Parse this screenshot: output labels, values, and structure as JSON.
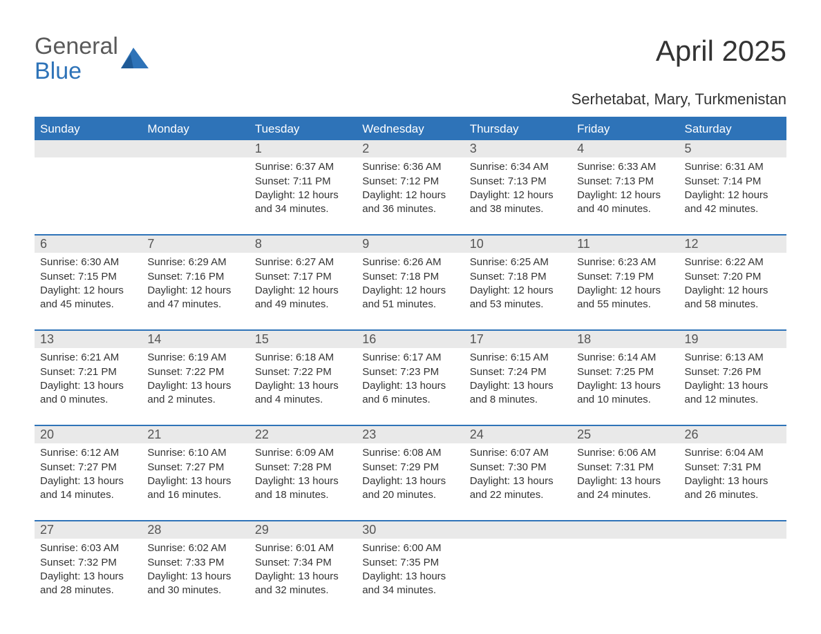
{
  "brand": {
    "top": "General",
    "bottom": "Blue",
    "top_color": "#5a5a5a",
    "bottom_color": "#2e73b8",
    "mark_color": "#2e73b8"
  },
  "title": "April 2025",
  "location": "Serhetabat, Mary, Turkmenistan",
  "colors": {
    "header_bg": "#2e73b8",
    "header_text": "#ffffff",
    "daynum_bg": "#e9e9e9",
    "week_divider": "#2e73b8",
    "body_text": "#333333",
    "page_bg": "#ffffff"
  },
  "typography": {
    "title_fontsize": 42,
    "location_fontsize": 22,
    "dayhead_fontsize": 17,
    "daynum_fontsize": 18,
    "cell_fontsize": 15
  },
  "day_headers": [
    "Sunday",
    "Monday",
    "Tuesday",
    "Wednesday",
    "Thursday",
    "Friday",
    "Saturday"
  ],
  "weeks": [
    {
      "days": [
        {
          "num": "",
          "sunrise": "",
          "sunset": "",
          "daylight": ""
        },
        {
          "num": "",
          "sunrise": "",
          "sunset": "",
          "daylight": ""
        },
        {
          "num": "1",
          "sunrise": "Sunrise: 6:37 AM",
          "sunset": "Sunset: 7:11 PM",
          "daylight": "Daylight: 12 hours and 34 minutes."
        },
        {
          "num": "2",
          "sunrise": "Sunrise: 6:36 AM",
          "sunset": "Sunset: 7:12 PM",
          "daylight": "Daylight: 12 hours and 36 minutes."
        },
        {
          "num": "3",
          "sunrise": "Sunrise: 6:34 AM",
          "sunset": "Sunset: 7:13 PM",
          "daylight": "Daylight: 12 hours and 38 minutes."
        },
        {
          "num": "4",
          "sunrise": "Sunrise: 6:33 AM",
          "sunset": "Sunset: 7:13 PM",
          "daylight": "Daylight: 12 hours and 40 minutes."
        },
        {
          "num": "5",
          "sunrise": "Sunrise: 6:31 AM",
          "sunset": "Sunset: 7:14 PM",
          "daylight": "Daylight: 12 hours and 42 minutes."
        }
      ]
    },
    {
      "days": [
        {
          "num": "6",
          "sunrise": "Sunrise: 6:30 AM",
          "sunset": "Sunset: 7:15 PM",
          "daylight": "Daylight: 12 hours and 45 minutes."
        },
        {
          "num": "7",
          "sunrise": "Sunrise: 6:29 AM",
          "sunset": "Sunset: 7:16 PM",
          "daylight": "Daylight: 12 hours and 47 minutes."
        },
        {
          "num": "8",
          "sunrise": "Sunrise: 6:27 AM",
          "sunset": "Sunset: 7:17 PM",
          "daylight": "Daylight: 12 hours and 49 minutes."
        },
        {
          "num": "9",
          "sunrise": "Sunrise: 6:26 AM",
          "sunset": "Sunset: 7:18 PM",
          "daylight": "Daylight: 12 hours and 51 minutes."
        },
        {
          "num": "10",
          "sunrise": "Sunrise: 6:25 AM",
          "sunset": "Sunset: 7:18 PM",
          "daylight": "Daylight: 12 hours and 53 minutes."
        },
        {
          "num": "11",
          "sunrise": "Sunrise: 6:23 AM",
          "sunset": "Sunset: 7:19 PM",
          "daylight": "Daylight: 12 hours and 55 minutes."
        },
        {
          "num": "12",
          "sunrise": "Sunrise: 6:22 AM",
          "sunset": "Sunset: 7:20 PM",
          "daylight": "Daylight: 12 hours and 58 minutes."
        }
      ]
    },
    {
      "days": [
        {
          "num": "13",
          "sunrise": "Sunrise: 6:21 AM",
          "sunset": "Sunset: 7:21 PM",
          "daylight": "Daylight: 13 hours and 0 minutes."
        },
        {
          "num": "14",
          "sunrise": "Sunrise: 6:19 AM",
          "sunset": "Sunset: 7:22 PM",
          "daylight": "Daylight: 13 hours and 2 minutes."
        },
        {
          "num": "15",
          "sunrise": "Sunrise: 6:18 AM",
          "sunset": "Sunset: 7:22 PM",
          "daylight": "Daylight: 13 hours and 4 minutes."
        },
        {
          "num": "16",
          "sunrise": "Sunrise: 6:17 AM",
          "sunset": "Sunset: 7:23 PM",
          "daylight": "Daylight: 13 hours and 6 minutes."
        },
        {
          "num": "17",
          "sunrise": "Sunrise: 6:15 AM",
          "sunset": "Sunset: 7:24 PM",
          "daylight": "Daylight: 13 hours and 8 minutes."
        },
        {
          "num": "18",
          "sunrise": "Sunrise: 6:14 AM",
          "sunset": "Sunset: 7:25 PM",
          "daylight": "Daylight: 13 hours and 10 minutes."
        },
        {
          "num": "19",
          "sunrise": "Sunrise: 6:13 AM",
          "sunset": "Sunset: 7:26 PM",
          "daylight": "Daylight: 13 hours and 12 minutes."
        }
      ]
    },
    {
      "days": [
        {
          "num": "20",
          "sunrise": "Sunrise: 6:12 AM",
          "sunset": "Sunset: 7:27 PM",
          "daylight": "Daylight: 13 hours and 14 minutes."
        },
        {
          "num": "21",
          "sunrise": "Sunrise: 6:10 AM",
          "sunset": "Sunset: 7:27 PM",
          "daylight": "Daylight: 13 hours and 16 minutes."
        },
        {
          "num": "22",
          "sunrise": "Sunrise: 6:09 AM",
          "sunset": "Sunset: 7:28 PM",
          "daylight": "Daylight: 13 hours and 18 minutes."
        },
        {
          "num": "23",
          "sunrise": "Sunrise: 6:08 AM",
          "sunset": "Sunset: 7:29 PM",
          "daylight": "Daylight: 13 hours and 20 minutes."
        },
        {
          "num": "24",
          "sunrise": "Sunrise: 6:07 AM",
          "sunset": "Sunset: 7:30 PM",
          "daylight": "Daylight: 13 hours and 22 minutes."
        },
        {
          "num": "25",
          "sunrise": "Sunrise: 6:06 AM",
          "sunset": "Sunset: 7:31 PM",
          "daylight": "Daylight: 13 hours and 24 minutes."
        },
        {
          "num": "26",
          "sunrise": "Sunrise: 6:04 AM",
          "sunset": "Sunset: 7:31 PM",
          "daylight": "Daylight: 13 hours and 26 minutes."
        }
      ]
    },
    {
      "days": [
        {
          "num": "27",
          "sunrise": "Sunrise: 6:03 AM",
          "sunset": "Sunset: 7:32 PM",
          "daylight": "Daylight: 13 hours and 28 minutes."
        },
        {
          "num": "28",
          "sunrise": "Sunrise: 6:02 AM",
          "sunset": "Sunset: 7:33 PM",
          "daylight": "Daylight: 13 hours and 30 minutes."
        },
        {
          "num": "29",
          "sunrise": "Sunrise: 6:01 AM",
          "sunset": "Sunset: 7:34 PM",
          "daylight": "Daylight: 13 hours and 32 minutes."
        },
        {
          "num": "30",
          "sunrise": "Sunrise: 6:00 AM",
          "sunset": "Sunset: 7:35 PM",
          "daylight": "Daylight: 13 hours and 34 minutes."
        },
        {
          "num": "",
          "sunrise": "",
          "sunset": "",
          "daylight": ""
        },
        {
          "num": "",
          "sunrise": "",
          "sunset": "",
          "daylight": ""
        },
        {
          "num": "",
          "sunrise": "",
          "sunset": "",
          "daylight": ""
        }
      ]
    }
  ]
}
